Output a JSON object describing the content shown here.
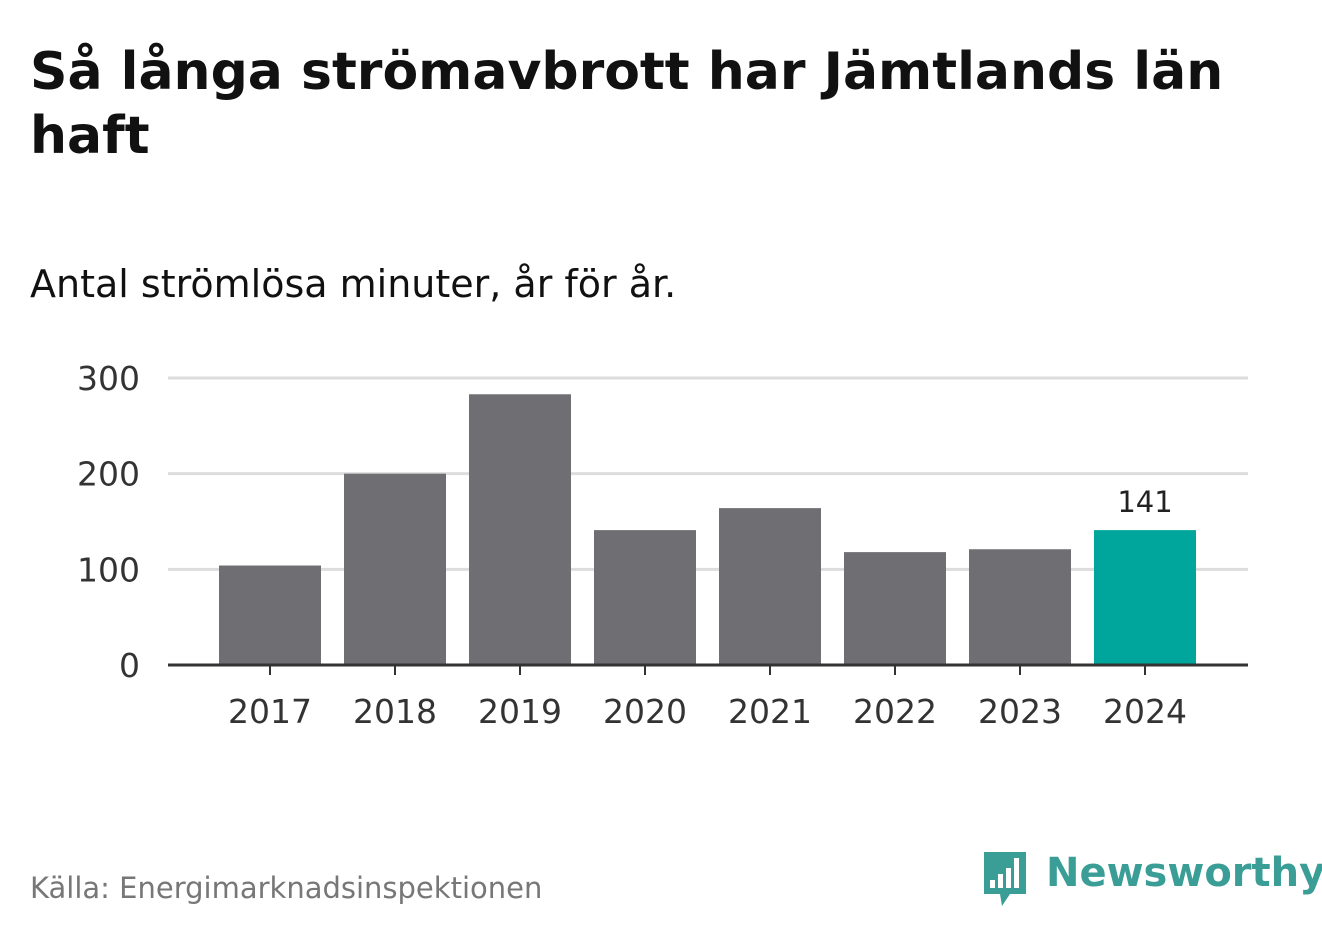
{
  "title": "Så långa strömavbrott har Jämtlands län haft",
  "subtitle": "Antal strömlösa minuter, år för år.",
  "source": "Källa: Energimarknadsinspektionen",
  "brand": {
    "name": "Newsworthy",
    "logo_icon": "bar-chart-speech-bubble-icon"
  },
  "colors": {
    "bar": "#6f6e73",
    "highlight": "#00a69b",
    "grid": "#dddddd",
    "axis": "#333333",
    "brand": "#3a9e97"
  },
  "chart_data": {
    "type": "bar",
    "title": "Så långa strömavbrott har Jämtlands län haft",
    "subtitle": "Antal strömlösa minuter, år för år.",
    "xlabel": "",
    "ylabel": "",
    "categories": [
      "2017",
      "2018",
      "2019",
      "2020",
      "2021",
      "2022",
      "2023",
      "2024"
    ],
    "values": [
      104,
      200,
      283,
      141,
      164,
      118,
      121,
      141
    ],
    "ylim": [
      0,
      300
    ],
    "yticks": [
      0,
      100,
      200,
      300
    ],
    "grid": true,
    "highlight_index": 7,
    "data_labels": [
      {
        "index": 7,
        "text": "141"
      }
    ]
  }
}
